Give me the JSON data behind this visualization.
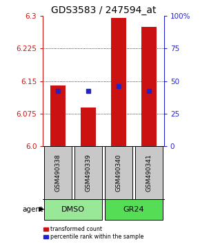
{
  "title": "GDS3583 / 247594_at",
  "samples": [
    "GSM490338",
    "GSM490339",
    "GSM490340",
    "GSM490341"
  ],
  "red_values": [
    6.14,
    6.09,
    6.295,
    6.275
  ],
  "blue_values": [
    6.128,
    6.128,
    6.138,
    6.128
  ],
  "ylim_left": [
    6.0,
    6.3
  ],
  "ylim_right": [
    0,
    100
  ],
  "left_ticks": [
    6.0,
    6.075,
    6.15,
    6.225,
    6.3
  ],
  "right_ticks": [
    0,
    25,
    50,
    75,
    100
  ],
  "right_tick_labels": [
    "0",
    "25",
    "50",
    "75",
    "100%"
  ],
  "groups": [
    {
      "label": "DMSO",
      "indices": [
        0,
        1
      ],
      "color": "#98E898"
    },
    {
      "label": "GR24",
      "indices": [
        2,
        3
      ],
      "color": "#55DD55"
    }
  ],
  "bar_color": "#CC1111",
  "blue_color": "#2222CC",
  "bar_width": 0.5,
  "sample_box_color": "#C8C8C8",
  "legend_red_label": "transformed count",
  "legend_blue_label": "percentile rank within the sample",
  "agent_label": "agent",
  "title_fontsize": 10,
  "tick_fontsize": 7.5
}
